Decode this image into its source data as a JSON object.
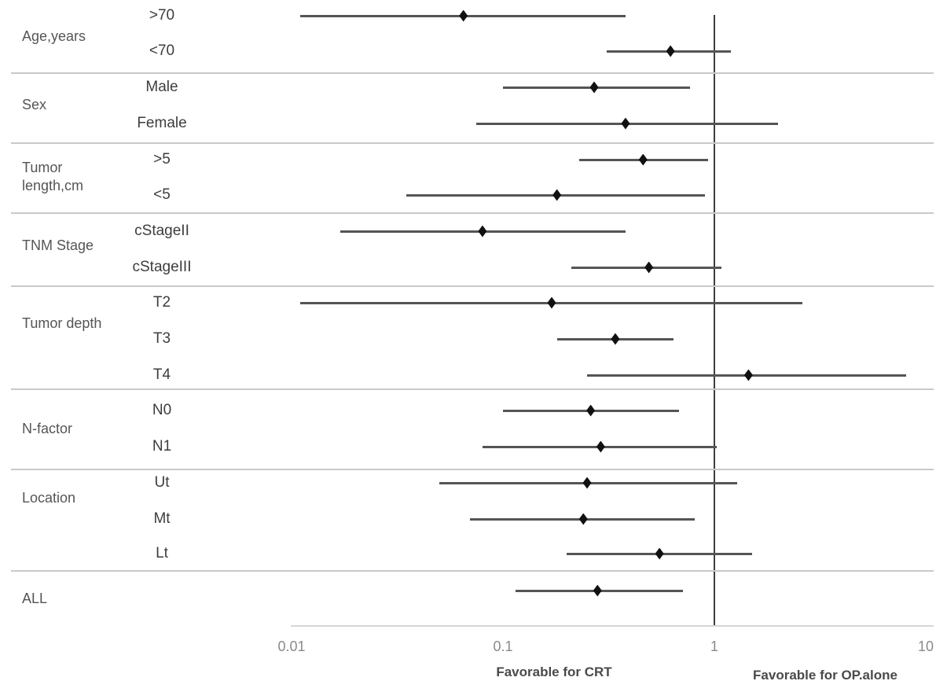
{
  "chart_data": {
    "type": "forest",
    "x_scale": "log10",
    "x_ticks": [
      {
        "label": "0.01",
        "value": 0.01
      },
      {
        "label": "0.1",
        "value": 0.1
      },
      {
        "label": "1",
        "value": 1
      },
      {
        "label": "10",
        "value": 10
      }
    ],
    "x_range": [
      0.01,
      10
    ],
    "reference_line_value": 1,
    "xlabel_left": "Favorable for CRT",
    "xlabel_right": "Favorable for OP.alone",
    "grid": "off",
    "groups": [
      {
        "label": "Age,years",
        "rows": [
          {
            "name": ">70",
            "est": 0.065,
            "lo": 0.011,
            "hi": 0.38
          },
          {
            "name": "<70",
            "est": 0.62,
            "lo": 0.31,
            "hi": 1.2
          }
        ]
      },
      {
        "label": "Sex",
        "rows": [
          {
            "name": "Male",
            "est": 0.27,
            "lo": 0.1,
            "hi": 0.77
          },
          {
            "name": "Female",
            "est": 0.38,
            "lo": 0.075,
            "hi": 2.0
          }
        ]
      },
      {
        "label": "Tumor length,cm",
        "rows": [
          {
            "name": ">5",
            "est": 0.46,
            "lo": 0.23,
            "hi": 0.93
          },
          {
            "name": "<5",
            "est": 0.18,
            "lo": 0.035,
            "hi": 0.9
          }
        ]
      },
      {
        "label": "TNM Stage",
        "rows": [
          {
            "name": "cStageII",
            "est": 0.08,
            "lo": 0.017,
            "hi": 0.38
          },
          {
            "name": "cStageIII",
            "est": 0.49,
            "lo": 0.21,
            "hi": 1.08
          }
        ]
      },
      {
        "label": "Tumor depth",
        "rows": [
          {
            "name": "T2",
            "est": 0.17,
            "lo": 0.011,
            "hi": 2.6
          },
          {
            "name": "T3",
            "est": 0.34,
            "lo": 0.18,
            "hi": 0.64
          },
          {
            "name": "T4",
            "est": 1.45,
            "lo": 0.25,
            "hi": 8.1
          }
        ]
      },
      {
        "label": "N-factor",
        "rows": [
          {
            "name": "N0",
            "est": 0.26,
            "lo": 0.1,
            "hi": 0.68
          },
          {
            "name": "N1",
            "est": 0.29,
            "lo": 0.08,
            "hi": 1.03
          }
        ]
      },
      {
        "label": "Location",
        "rows": [
          {
            "name": "Ut",
            "est": 0.25,
            "lo": 0.05,
            "hi": 1.28
          },
          {
            "name": "Mt",
            "est": 0.24,
            "lo": 0.07,
            "hi": 0.81
          },
          {
            "name": "Lt",
            "est": 0.55,
            "lo": 0.2,
            "hi": 1.51
          }
        ]
      },
      {
        "label": "ALL",
        "rows": [
          {
            "name": "",
            "est": 0.28,
            "lo": 0.115,
            "hi": 0.71
          }
        ]
      }
    ]
  },
  "colors": {
    "ci_line": "#555555",
    "diamond": "#111111",
    "reference_line": "#3d3d3d",
    "divider": "#c9c9c9",
    "axis_line": "#d6d6d6",
    "label_text": "#555555",
    "subgroup_text": "#3d3d3d",
    "tick_text": "#8a8a8a",
    "caption_text": "#4a4a4a"
  }
}
